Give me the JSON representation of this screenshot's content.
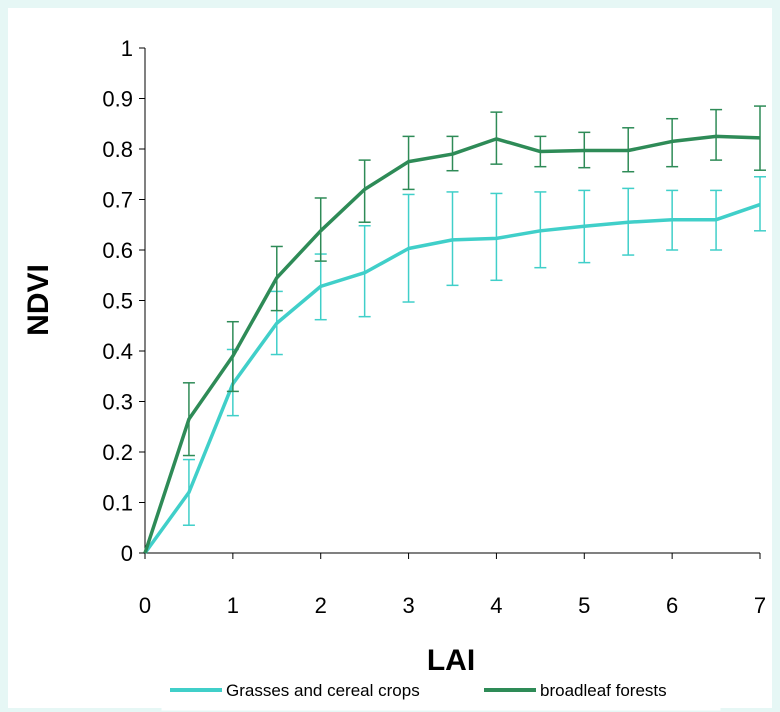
{
  "chart_data": {
    "type": "line",
    "xlabel": "LAI",
    "ylabel": "NDVI",
    "xlim": [
      0,
      7
    ],
    "ylim": [
      0,
      1
    ],
    "xticks": [
      "0",
      "1",
      "2",
      "3",
      "4",
      "5",
      "6",
      "7"
    ],
    "yticks": [
      "0",
      "0.1",
      "0.2",
      "0.3",
      "0.4",
      "0.5",
      "0.6",
      "0.7",
      "0.8",
      "0.9",
      "1"
    ],
    "grid": false,
    "legend_position": "bottom",
    "x": [
      0,
      0.5,
      1,
      1.5,
      2,
      2.5,
      3,
      3.5,
      4,
      4.5,
      5,
      5.5,
      6,
      6.5,
      7
    ],
    "series": [
      {
        "name": "Grasses and cereal crops",
        "color": "#40cfc9",
        "values": [
          0,
          0.12,
          0.335,
          0.455,
          0.528,
          0.555,
          0.603,
          0.62,
          0.623,
          0.638,
          0.647,
          0.655,
          0.66,
          0.66,
          0.69
        ],
        "err_low": [
          0,
          0.055,
          0.272,
          0.393,
          0.462,
          0.468,
          0.497,
          0.53,
          0.54,
          0.565,
          0.575,
          0.59,
          0.6,
          0.6,
          0.638
        ],
        "err_high": [
          0,
          0.185,
          0.403,
          0.518,
          0.592,
          0.648,
          0.71,
          0.715,
          0.712,
          0.715,
          0.718,
          0.722,
          0.718,
          0.718,
          0.745
        ]
      },
      {
        "name": "broadleaf forests",
        "color": "#2e8b57",
        "values": [
          0,
          0.265,
          0.39,
          0.545,
          0.638,
          0.72,
          0.775,
          0.79,
          0.82,
          0.795,
          0.797,
          0.797,
          0.815,
          0.825,
          0.822
        ],
        "err_low": [
          0,
          0.193,
          0.32,
          0.48,
          0.578,
          0.655,
          0.72,
          0.757,
          0.77,
          0.765,
          0.763,
          0.755,
          0.765,
          0.778,
          0.758
        ],
        "err_high": [
          0,
          0.337,
          0.458,
          0.607,
          0.703,
          0.778,
          0.825,
          0.825,
          0.873,
          0.825,
          0.833,
          0.842,
          0.86,
          0.878,
          0.885
        ]
      }
    ]
  }
}
